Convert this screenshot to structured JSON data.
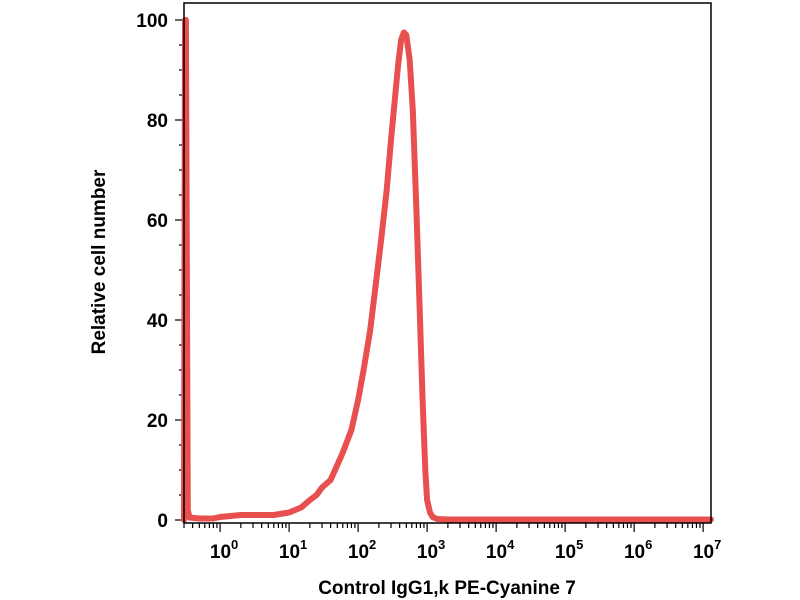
{
  "chart_data": {
    "type": "area",
    "title": "",
    "xlabel": "Control IgG1,k PE-Cyanine 7",
    "ylabel": "Relative cell number",
    "x_scale": "log",
    "x_ticks": [
      {
        "base": "10",
        "exp": "0",
        "value": 1
      },
      {
        "base": "10",
        "exp": "1",
        "value": 10
      },
      {
        "base": "10",
        "exp": "2",
        "value": 100
      },
      {
        "base": "10",
        "exp": "3",
        "value": 1000
      },
      {
        "base": "10",
        "exp": "4",
        "value": 10000
      },
      {
        "base": "10",
        "exp": "5",
        "value": 100000
      },
      {
        "base": "10",
        "exp": "6",
        "value": 1000000
      },
      {
        "base": "10",
        "exp": "7",
        "value": 10000000
      }
    ],
    "y_ticks": [
      "0",
      "20",
      "40",
      "60",
      "80",
      "100"
    ],
    "xlim": [
      0.3,
      13000000
    ],
    "ylim": [
      0,
      100
    ],
    "grid": false,
    "series": [
      {
        "color": "#e8504f",
        "x": [
          0.3,
          0.31,
          0.32,
          0.34,
          0.36,
          0.5,
          0.8,
          1.0,
          2.0,
          4.0,
          6.0,
          10,
          15,
          20,
          25,
          30,
          40,
          50,
          60,
          80,
          100,
          120,
          150,
          180,
          220,
          260,
          300,
          340,
          380,
          420,
          460,
          500,
          560,
          620,
          700,
          780,
          860,
          940,
          1000,
          1100,
          1200,
          1400,
          2000,
          5000,
          20000,
          200000,
          2000000,
          13000000
        ],
        "y": [
          0,
          100,
          100,
          2,
          0.5,
          0.3,
          0.3,
          0.6,
          1.0,
          1.0,
          1.0,
          1.5,
          2.5,
          4.0,
          5.0,
          6.5,
          8.0,
          11.0,
          13.5,
          18.0,
          24.0,
          30.0,
          38.0,
          47.0,
          57.0,
          66.0,
          76.0,
          84.0,
          91.0,
          96.0,
          97.5,
          97.0,
          92.0,
          82.0,
          62.0,
          42.0,
          24.0,
          10.0,
          4.0,
          1.5,
          0.6,
          0.2,
          0.1,
          0.1,
          0.1,
          0.1,
          0.1,
          0.1
        ]
      }
    ]
  }
}
